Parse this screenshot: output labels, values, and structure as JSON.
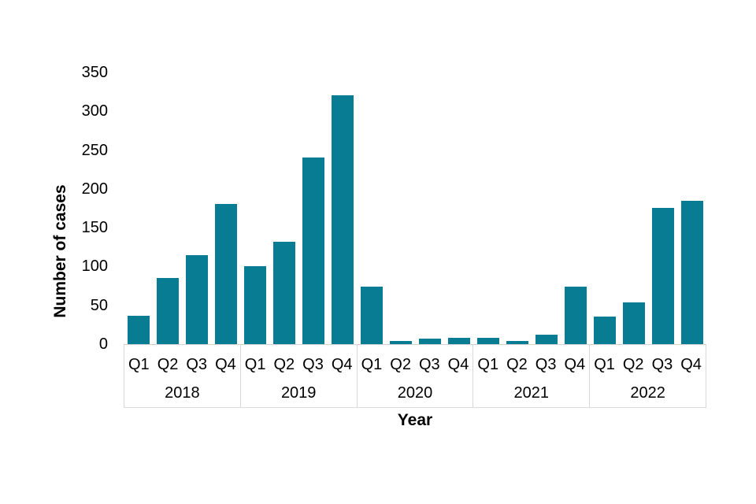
{
  "chart_data": {
    "type": "bar",
    "title": "",
    "x_axis": {
      "label": "Year",
      "group_labels": [
        "2018",
        "2019",
        "2020",
        "2021",
        "2022"
      ],
      "quarter_labels": [
        "Q1",
        "Q2",
        "Q3",
        "Q4"
      ]
    },
    "y_axis": {
      "label": "Number of cases",
      "ticks": [
        0,
        50,
        100,
        150,
        200,
        250,
        300,
        350
      ],
      "range": [
        0,
        350
      ]
    },
    "series": [
      {
        "year": "2018",
        "values": [
          37,
          85,
          115,
          181
        ]
      },
      {
        "year": "2019",
        "values": [
          100,
          132,
          240,
          321
        ]
      },
      {
        "year": "2020",
        "values": [
          74,
          4,
          7,
          8
        ]
      },
      {
        "year": "2021",
        "values": [
          8,
          4,
          12,
          74
        ]
      },
      {
        "year": "2022",
        "values": [
          36,
          54,
          175,
          185
        ]
      }
    ],
    "colors": {
      "bar": "#087c92",
      "axis_lines": "#d7d7da",
      "text": "#000000"
    },
    "grid": false,
    "legend": false
  }
}
